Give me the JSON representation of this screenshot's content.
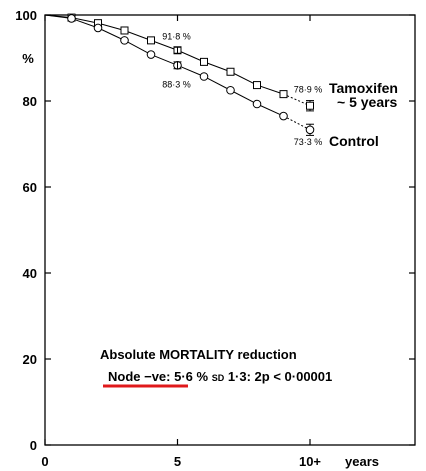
{
  "chart_data": {
    "type": "line",
    "title": "",
    "xlabel": "years",
    "ylabel": "%",
    "xlim": [
      0,
      12
    ],
    "ylim": [
      0,
      100
    ],
    "x_ticks": [
      {
        "value": 0,
        "label": "0"
      },
      {
        "value": 5,
        "label": "5"
      },
      {
        "value": 10,
        "label": "10+"
      }
    ],
    "y_ticks": [
      0,
      20,
      40,
      60,
      80,
      100
    ],
    "grid": false,
    "series": [
      {
        "name": "Tamoxifen",
        "name_line2": "~ 5 years",
        "marker": "square",
        "x": [
          0,
          1,
          2,
          3,
          4,
          5,
          6,
          7,
          8,
          9
        ],
        "y": [
          100,
          99.4,
          98.1,
          96.4,
          94.1,
          91.8,
          89.1,
          86.8,
          83.7,
          81.6
        ],
        "end_x": 10,
        "end_y": 78.9,
        "end_error": 1.2,
        "mid_x": 5,
        "mid_y": 91.8,
        "mid_error": 0.7,
        "mid_label": "91·8 %",
        "end_label": "78·9 %"
      },
      {
        "name": "Control",
        "marker": "circle",
        "x": [
          0,
          1,
          2,
          3,
          4,
          5,
          6,
          7,
          8,
          9
        ],
        "y": [
          100,
          99.2,
          97,
          94.1,
          90.8,
          88.3,
          85.7,
          82.5,
          79.3,
          76.5
        ],
        "end_x": 10,
        "end_y": 73.3,
        "end_error": 1.3,
        "mid_x": 5,
        "mid_y": 88.3,
        "mid_error": 0.8,
        "mid_label": "88·3 %",
        "end_label": "73·3 %"
      }
    ],
    "annotation": {
      "title": "Absolute MORTALITY reduction",
      "line_prefix": "Node −ve: 5·6 % ",
      "line_sd": "SD",
      "line_suffix": " 1·3: 2p < 0·00001",
      "underline_color": "#e0191b"
    }
  }
}
